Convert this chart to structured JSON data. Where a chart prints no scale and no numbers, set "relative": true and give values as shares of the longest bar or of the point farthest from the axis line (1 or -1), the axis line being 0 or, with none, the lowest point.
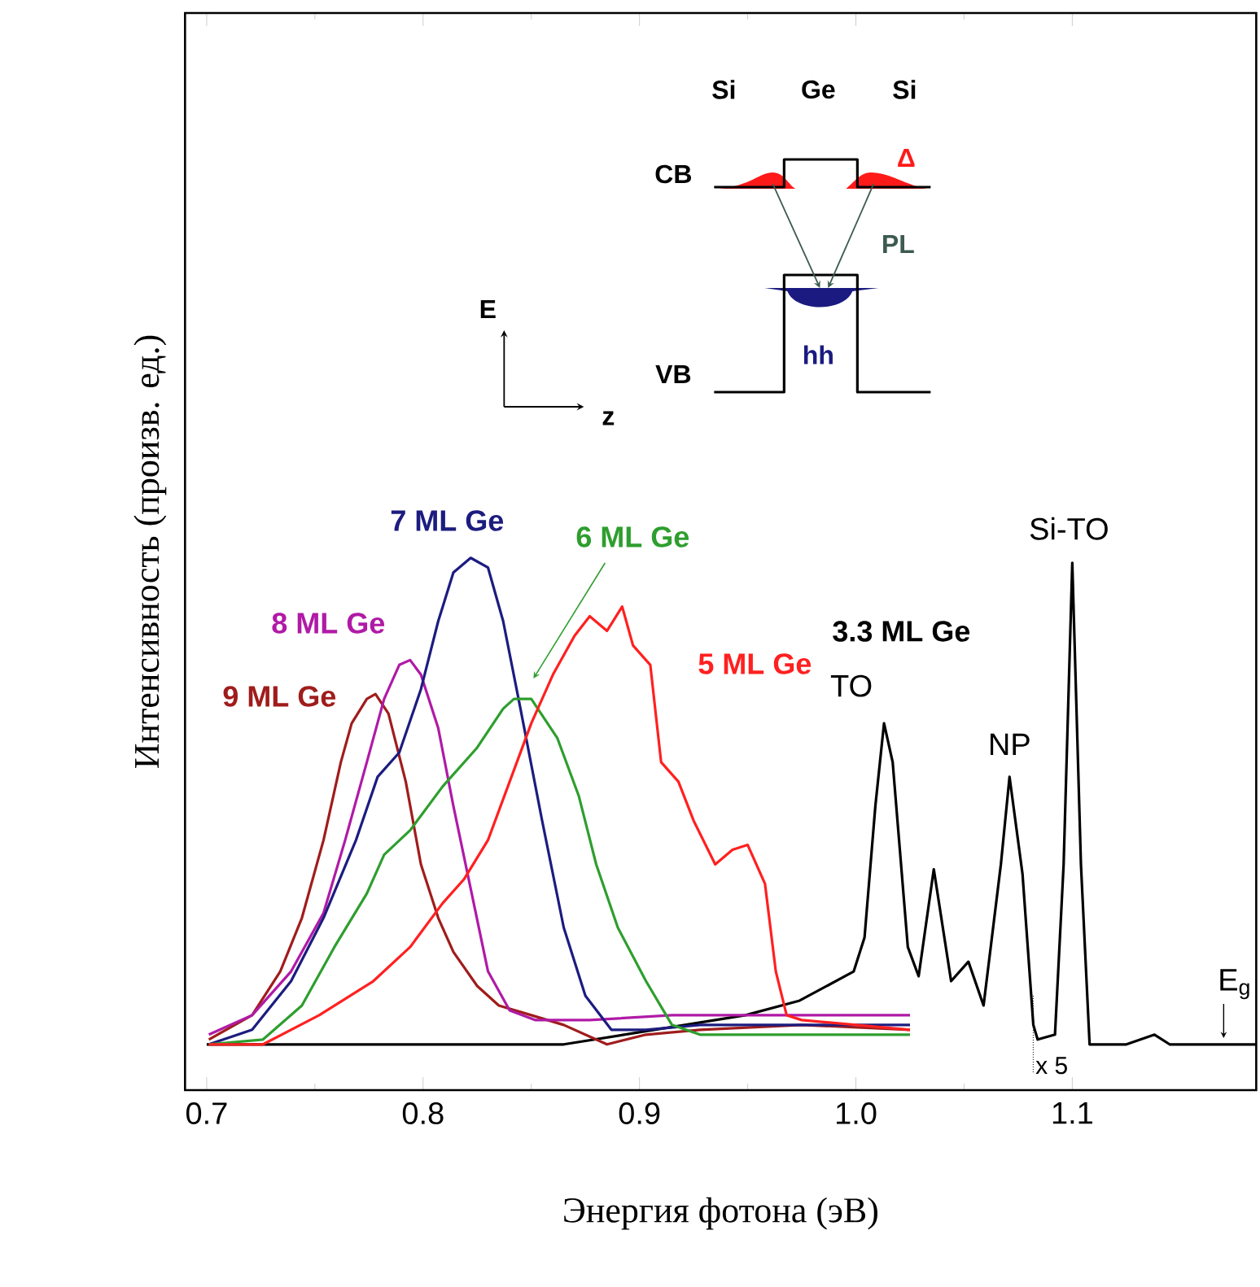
{
  "chart_data": {
    "type": "line",
    "relative": true,
    "xlabel": "Энергия фотона (эВ)",
    "ylabel": "Интенсивность (произв. ед.)",
    "xlim": [
      0.69,
      1.185
    ],
    "xticks": [
      0.7,
      0.8,
      0.9,
      {
        "value": 1.0,
        "label": "1.0"
      },
      1.1
    ],
    "series": [
      {
        "name": "9 ML Ge",
        "color": "#a01c1c",
        "x": [
          0.701,
          0.721,
          0.734,
          0.744,
          0.754,
          0.762,
          0.767,
          0.774,
          0.778,
          0.784,
          0.792,
          0.799,
          0.807,
          0.814,
          0.825,
          0.835,
          0.85,
          0.865,
          0.885,
          0.903,
          0.928,
          0.975,
          1.025
        ],
        "values": [
          0.01,
          0.06,
          0.15,
          0.26,
          0.42,
          0.58,
          0.66,
          0.71,
          0.72,
          0.68,
          0.54,
          0.37,
          0.26,
          0.19,
          0.12,
          0.08,
          0.06,
          0.04,
          0,
          0.02,
          0.03,
          0.04,
          0.03
        ]
      },
      {
        "name": "8 ML Ge",
        "color": "#b01aa6",
        "x": [
          0.701,
          0.721,
          0.739,
          0.754,
          0.764,
          0.774,
          0.782,
          0.789,
          0.794,
          0.799,
          0.807,
          0.814,
          0.822,
          0.83,
          0.84,
          0.852,
          0.877,
          0.915,
          0.975,
          1.025
        ],
        "values": [
          0.02,
          0.06,
          0.15,
          0.27,
          0.42,
          0.58,
          0.71,
          0.78,
          0.79,
          0.76,
          0.65,
          0.49,
          0.32,
          0.15,
          0.07,
          0.05,
          0.05,
          0.06,
          0.06,
          0.06
        ]
      },
      {
        "name": "7 ML Ge",
        "color": "#1c1c80",
        "x": [
          0.701,
          0.721,
          0.739,
          0.754,
          0.769,
          0.779,
          0.789,
          0.799,
          0.807,
          0.814,
          0.822,
          0.83,
          0.837,
          0.845,
          0.855,
          0.865,
          0.875,
          0.887,
          0.903,
          0.928,
          0.975,
          1.025
        ],
        "values": [
          0,
          0.03,
          0.13,
          0.26,
          0.42,
          0.55,
          0.6,
          0.73,
          0.87,
          0.97,
          1,
          0.98,
          0.87,
          0.69,
          0.46,
          0.24,
          0.1,
          0.03,
          0.03,
          0.04,
          0.04,
          0.04
        ]
      },
      {
        "name": "6 ML Ge",
        "color": "#2e9e2e",
        "x": [
          0.701,
          0.726,
          0.744,
          0.759,
          0.774,
          0.782,
          0.794,
          0.809,
          0.825,
          0.837,
          0.842,
          0.85,
          0.862,
          0.872,
          0.88,
          0.89,
          0.903,
          0.915,
          0.928,
          0.965,
          1.025
        ],
        "values": [
          0,
          0.01,
          0.08,
          0.2,
          0.31,
          0.39,
          0.44,
          0.53,
          0.61,
          0.69,
          0.71,
          0.71,
          0.63,
          0.51,
          0.37,
          0.24,
          0.13,
          0.04,
          0.02,
          0.02,
          0.02
        ]
      },
      {
        "name": "5 ML Ge",
        "color": "#ff2020",
        "x": [
          0.701,
          0.726,
          0.752,
          0.777,
          0.794,
          0.809,
          0.819,
          0.83,
          0.84,
          0.85,
          0.86,
          0.87,
          0.877,
          0.885,
          0.892,
          0.897,
          0.905,
          0.91,
          0.918,
          0.925,
          0.935,
          0.943,
          0.95,
          0.958,
          0.963,
          0.968,
          0.975,
          1.025
        ],
        "values": [
          0,
          0,
          0.06,
          0.13,
          0.2,
          0.29,
          0.34,
          0.42,
          0.54,
          0.66,
          0.76,
          0.84,
          0.88,
          0.85,
          0.9,
          0.82,
          0.78,
          0.58,
          0.54,
          0.46,
          0.37,
          0.4,
          0.41,
          0.33,
          0.15,
          0.06,
          0.05,
          0.03
        ]
      },
      {
        "name": "3.3 ML Ge",
        "color": "#000000",
        "x": [
          0.7,
          0.865,
          0.949,
          0.974,
          0.999,
          1.004,
          1.009,
          1.013,
          1.017,
          1.024,
          1.029,
          1.036,
          1.044,
          1.052,
          1.059,
          1.067,
          1.071,
          1.077,
          1.082,
          1.084,
          1.092,
          1.096,
          1.1,
          1.104,
          1.108,
          1.125,
          1.138,
          1.145,
          1.185
        ],
        "values": [
          0,
          0,
          0.06,
          0.09,
          0.15,
          0.22,
          0.49,
          0.66,
          0.58,
          0.2,
          0.14,
          0.36,
          0.13,
          0.17,
          0.08,
          0.37,
          0.55,
          0.35,
          0.04,
          0.01,
          0.02,
          0.37,
          0.99,
          0.37,
          0,
          0,
          0.02,
          0,
          0
        ]
      }
    ],
    "annotations": [
      {
        "text": "TO",
        "x": 1.013,
        "y": 0.66
      },
      {
        "text": "NP",
        "x": 1.071,
        "y": 0.55
      },
      {
        "text": "Si-TO",
        "x": 1.1,
        "y": 0.99
      },
      {
        "text": "x 5",
        "x": 1.083,
        "y": 0
      },
      {
        "text": "E$_{g}$",
        "x": 1.172,
        "y": 0
      },
      "Si",
      "Ge",
      "Si",
      "CB",
      "VB",
      "Δ",
      "PL",
      "hh",
      "E",
      "z"
    ]
  }
}
